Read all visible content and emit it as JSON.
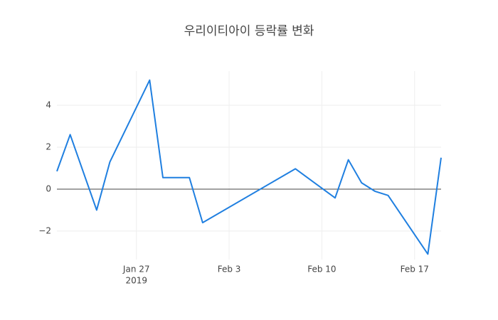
{
  "chart_data": {
    "type": "line",
    "title": "우리이티아이 등락률 변화",
    "x": [
      "2019-01-21",
      "2019-01-22",
      "2019-01-24",
      "2019-01-25",
      "2019-01-28",
      "2019-01-29",
      "2019-01-31",
      "2019-02-01",
      "2019-02-08",
      "2019-02-11",
      "2019-02-12",
      "2019-02-13",
      "2019-02-14",
      "2019-02-15",
      "2019-02-18",
      "2019-02-19"
    ],
    "series": [
      {
        "name": "등락률",
        "color": "#1f7fe0",
        "values": [
          0.85,
          2.6,
          -1.0,
          1.3,
          5.2,
          0.55,
          0.55,
          -1.6,
          0.97,
          -0.42,
          1.4,
          0.3,
          -0.1,
          -0.3,
          -3.1,
          1.5
        ]
      }
    ],
    "xlim": [
      "2019-01-21",
      "2019-02-19"
    ],
    "xticks": [
      {
        "value": "2019-01-27",
        "label": "Jan 27",
        "sublabel": "2019"
      },
      {
        "value": "2019-02-03",
        "label": "Feb 3"
      },
      {
        "value": "2019-02-10",
        "label": "Feb 10"
      },
      {
        "value": "2019-02-17",
        "label": "Feb 17"
      }
    ],
    "ylim": [
      -3.36,
      5.63
    ],
    "yticks": [
      {
        "value": -2,
        "label": "−2"
      },
      0,
      2,
      4
    ],
    "grid": true,
    "zeroline": true
  }
}
